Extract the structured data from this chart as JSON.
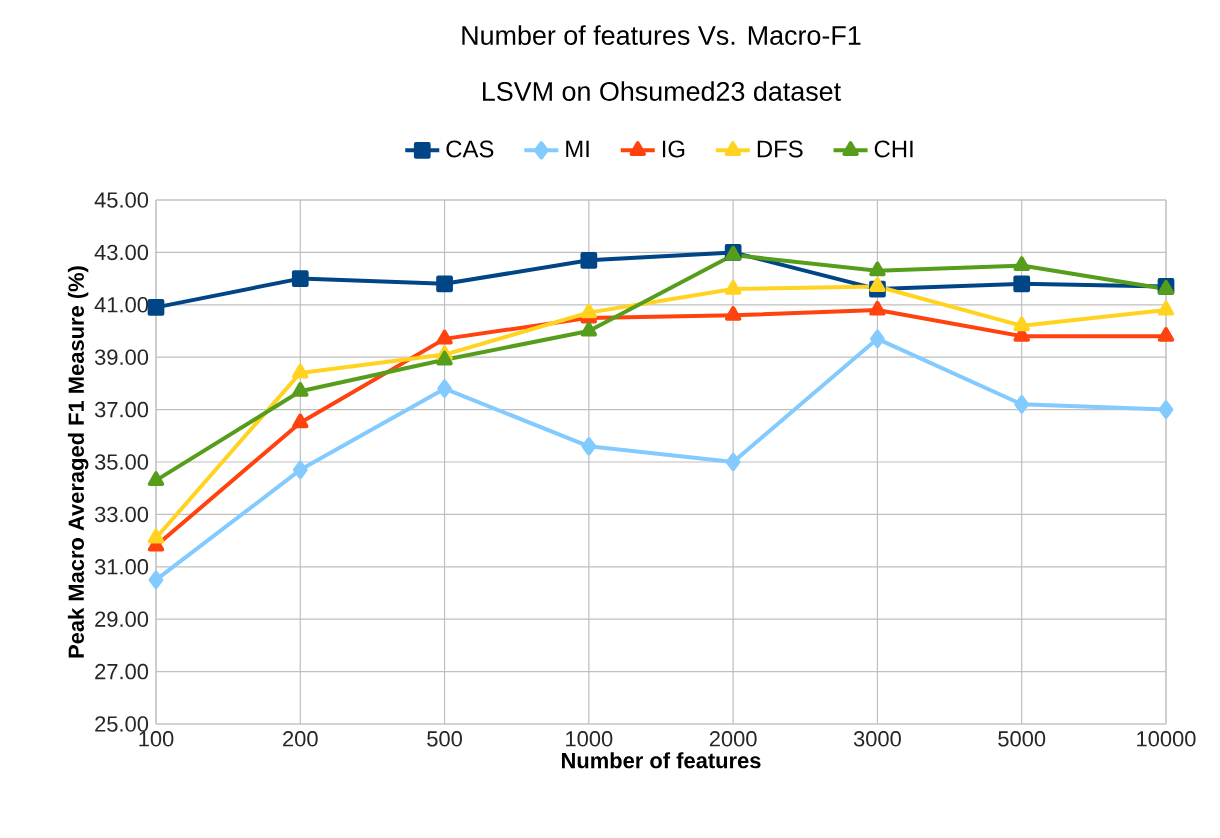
{
  "chart_data": {
    "type": "line",
    "title": "Number of features Vs. Macro-F1",
    "subtitle": "LSVM on Ohsumed23 dataset",
    "xlabel": "Number of features",
    "ylabel": "Peak Macro Averaged F1 Measure (%)",
    "categories": [
      "100",
      "200",
      "500",
      "1000",
      "2000",
      "3000",
      "5000",
      "10000"
    ],
    "series": [
      {
        "name": "CAS",
        "color": "#004586",
        "marker": "square",
        "values": [
          40.9,
          42.0,
          41.8,
          42.7,
          43.0,
          41.6,
          41.8,
          41.7
        ]
      },
      {
        "name": "MI",
        "color": "#83caff",
        "marker": "diamond",
        "values": [
          30.5,
          34.7,
          37.8,
          35.6,
          35.0,
          39.7,
          37.2,
          37.0
        ]
      },
      {
        "name": "IG",
        "color": "#ff420e",
        "marker": "triangle",
        "values": [
          31.8,
          36.5,
          39.7,
          40.5,
          40.6,
          40.8,
          39.8,
          39.8
        ]
      },
      {
        "name": "DFS",
        "color": "#ffd320",
        "marker": "triangle",
        "values": [
          32.1,
          38.4,
          39.1,
          40.7,
          41.6,
          41.7,
          40.2,
          40.8
        ]
      },
      {
        "name": "CHI",
        "color": "#579d1c",
        "marker": "triangle",
        "values": [
          34.3,
          37.7,
          38.9,
          40.0,
          42.9,
          42.3,
          42.5,
          41.6
        ]
      }
    ],
    "ylim": [
      25,
      45
    ],
    "yticks": [
      {
        "value": 25,
        "label": "25.00"
      },
      {
        "value": 27,
        "label": "27.00"
      },
      {
        "value": 29,
        "label": "29.00"
      },
      {
        "value": 31,
        "label": "31.00"
      },
      {
        "value": 33,
        "label": "33.00"
      },
      {
        "value": 35,
        "label": "35.00"
      },
      {
        "value": 37,
        "label": "37.00"
      },
      {
        "value": 39,
        "label": "39.00"
      },
      {
        "value": 41,
        "label": "41.00"
      },
      {
        "value": 43,
        "label": "43.00"
      },
      {
        "value": 45,
        "label": "45.00"
      }
    ],
    "grid": true,
    "legend": "top",
    "line_style": "solid"
  }
}
